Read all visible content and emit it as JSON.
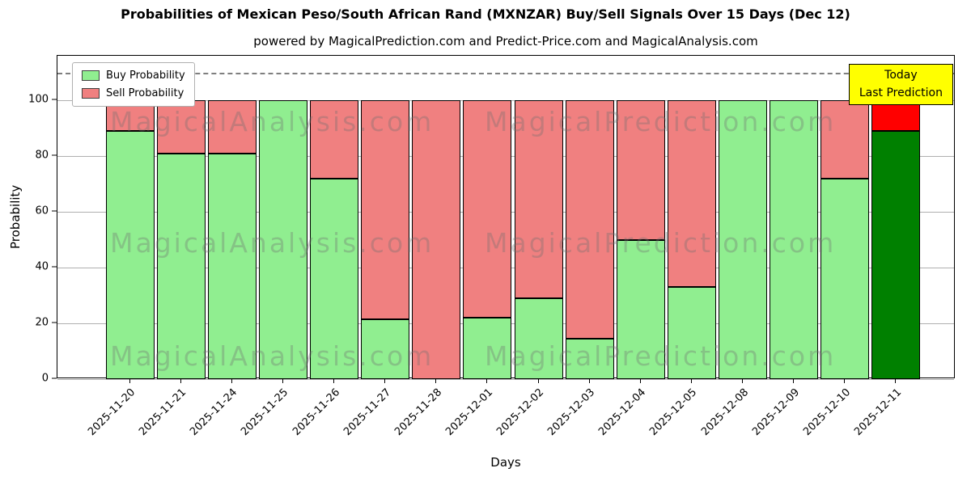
{
  "chart": {
    "title": "Probabilities of Mexican Peso/South African Rand (MXNZAR) Buy/Sell Signals Over 15 Days (Dec 12)",
    "subtitle": "powered by MagicalPrediction.com and Predict-Price.com and MagicalAnalysis.com",
    "xlabel": "Days",
    "ylabel": "Probability",
    "legend": [
      {
        "label": "Buy Probability",
        "color": "#90EE90"
      },
      {
        "label": "Sell Probability",
        "color": "#F08080"
      }
    ],
    "annotation": {
      "lines": [
        "Today",
        "Last Prediction"
      ],
      "bg": "#FFFF00"
    },
    "watermarks": {
      "left": "MagicalAnalysis.com",
      "right": "MagicalPrediction.com"
    }
  },
  "chart_data": {
    "type": "bar",
    "stacked": true,
    "title": "Probabilities of Mexican Peso/South African Rand (MXNZAR) Buy/Sell Signals Over 15 Days (Dec 12)",
    "xlabel": "Days",
    "ylabel": "Probability",
    "categories": [
      "2025-11-20",
      "2025-11-21",
      "2025-11-24",
      "2025-11-25",
      "2025-11-26",
      "2025-11-27",
      "2025-11-28",
      "2025-12-01",
      "2025-12-02",
      "2025-12-03",
      "2025-12-04",
      "2025-12-05",
      "2025-12-08",
      "2025-12-09",
      "2025-12-10",
      "2025-12-11"
    ],
    "series": [
      {
        "name": "Buy Probability",
        "color": "#90EE90",
        "values": [
          89,
          81,
          81,
          100,
          72,
          21.5,
          0,
          22,
          29,
          14.5,
          50,
          33,
          100,
          100,
          72,
          89
        ]
      },
      {
        "name": "Sell Probability",
        "color": "#F08080",
        "values": [
          11,
          19,
          19,
          0,
          28,
          78.5,
          100,
          78,
          71,
          85.5,
          50,
          67,
          0,
          0,
          28,
          11
        ]
      }
    ],
    "today_colors": {
      "buy": "#008000",
      "sell": "#FF0000"
    },
    "yticks": [
      0,
      20,
      40,
      60,
      80,
      100
    ],
    "ylim": [
      0,
      116
    ],
    "dashed_line_y": 110,
    "grid": true,
    "legend_position": "upper left"
  }
}
